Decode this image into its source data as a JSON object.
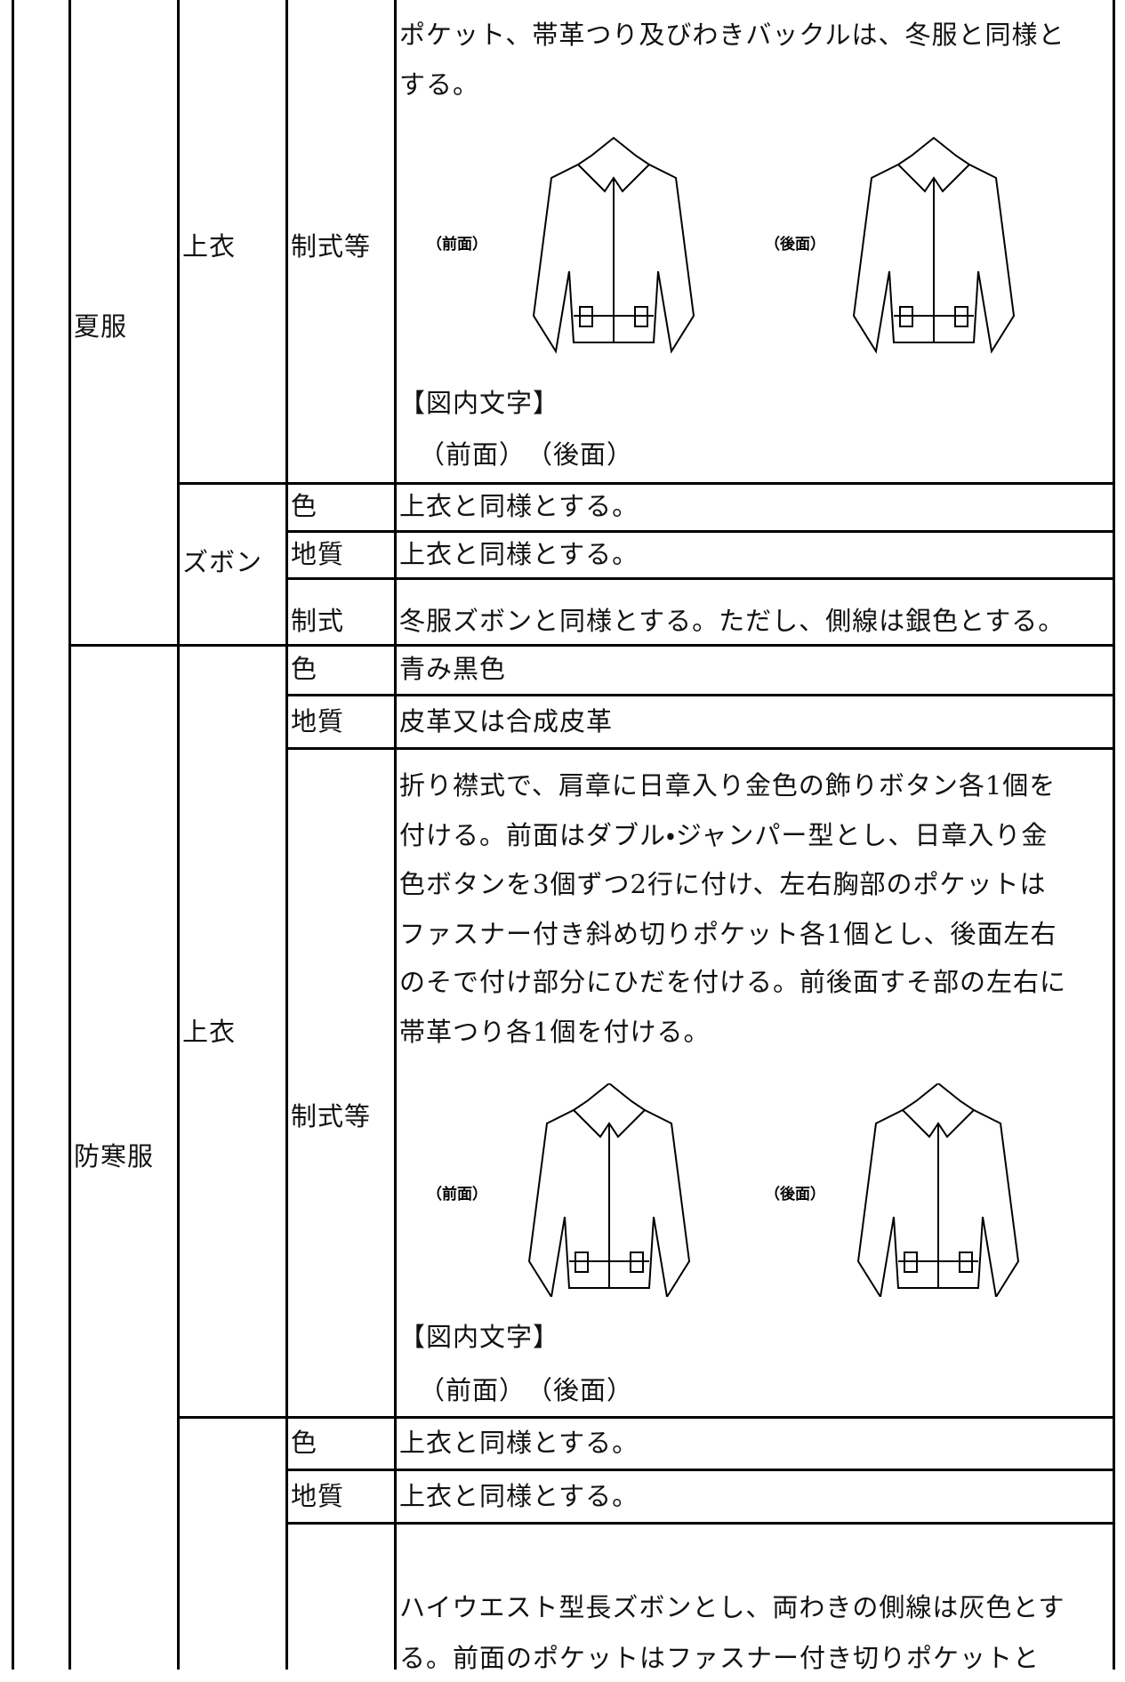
{
  "summer": {
    "label": "夏服",
    "jacket": {
      "label": "上衣",
      "style": {
        "label": "制式等",
        "lines": [
          "ポケット、帯革つり及びわきバックルは、冬服と同様と",
          "する。"
        ],
        "figure": {
          "front": "（前面）",
          "back": "（後面）"
        },
        "caption": "【図内文字】",
        "caption_text": "（前面）　（後面）"
      }
    },
    "trousers": {
      "label": "ズボン",
      "rows": [
        {
          "label": "色",
          "text": "上衣と同様とする。"
        },
        {
          "label": "地質",
          "text": "上衣と同様とする。"
        },
        {
          "label": "制式",
          "text": "冬服ズボンと同様とする。ただし、側線は銀色とする。"
        }
      ]
    }
  },
  "winter": {
    "label": "防寒服",
    "jacket": {
      "label": "上衣",
      "rows": [
        {
          "label": "色",
          "text": "青み黒色"
        },
        {
          "label": "地質",
          "text": "皮革又は合成皮革"
        }
      ],
      "style": {
        "label": "制式等",
        "lines": [
          "折り襟式で、肩章に日章入り金色の飾りボタン各1個を",
          "付ける。前面はダブル・ジャンパー型とし、日章入り金",
          "色ボタンを3個ずつ2行に付け、左右胸部のポケットは",
          "ファスナー付き斜め切りポケット各1個とし、後面左右",
          "のそで付け部分にひだを付ける。前後面すそ部の左右に",
          "帯革つり各1個を付ける。"
        ],
        "figure": {
          "front": "（前面）",
          "back": "（後面）"
        },
        "caption": "【図内文字】",
        "caption_text": "（前面）　（後面）"
      }
    },
    "trousers": {
      "rows": [
        {
          "label": "色",
          "text": "上衣と同様とする。"
        },
        {
          "label": "地質",
          "text": "上衣と同様とする。"
        },
        {
          "lines": [
            "ハイウエスト型長ズボンとし、両わきの側線は灰色とす",
            "る。前面のポケットはファスナー付き切りポケットと"
          ]
        }
      ]
    }
  }
}
